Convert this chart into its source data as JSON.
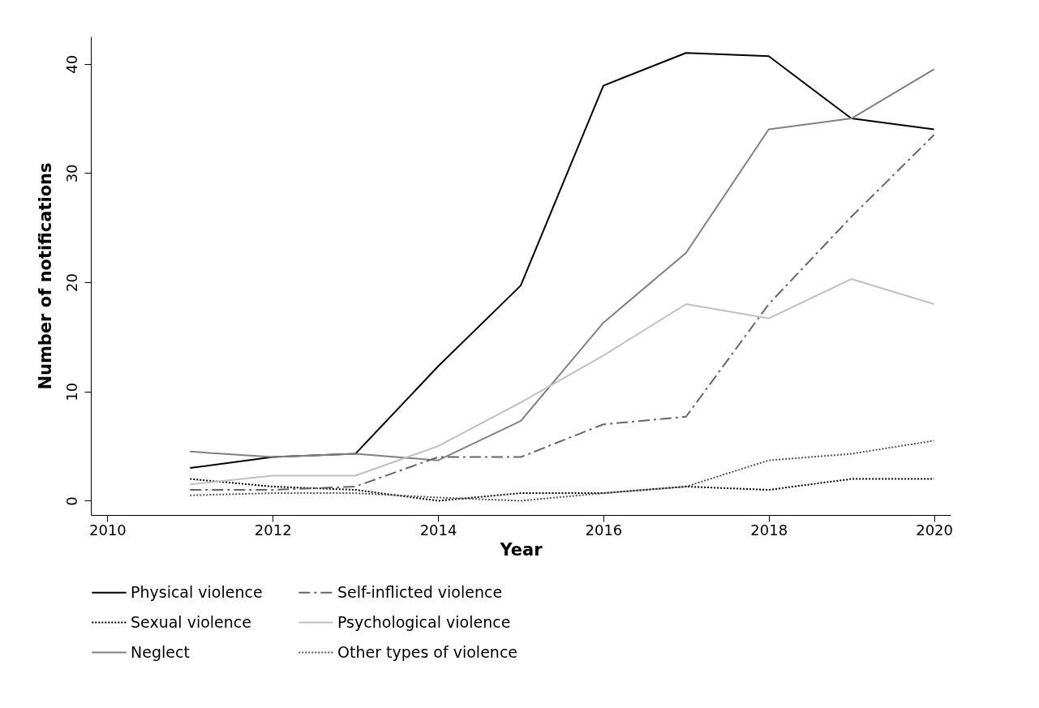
{
  "chart_data": {
    "type": "line",
    "xlabel": "Year",
    "ylabel": "Number of notifications",
    "x": [
      2011,
      2012,
      2013,
      2014,
      2015,
      2016,
      2017,
      2018,
      2019,
      2020
    ],
    "series": [
      {
        "name": "Physical violence",
        "color": "#000000",
        "line_style": "solid",
        "values": [
          3,
          4,
          4.3,
          12.3,
          19.7,
          38,
          41,
          40.7,
          35,
          34
        ]
      },
      {
        "name": "Sexual violence",
        "color": "#000000",
        "line_style": "dotted",
        "values": [
          2,
          1.3,
          1,
          0,
          0.7,
          0.7,
          1.3,
          1,
          2,
          2
        ]
      },
      {
        "name": "Neglect",
        "color": "#808080",
        "line_style": "solid",
        "values": [
          4.5,
          4,
          4.3,
          3.7,
          7.3,
          16.3,
          22.7,
          34,
          35,
          39.5
        ]
      },
      {
        "name": "Self-inflicted violence",
        "color": "#666666",
        "line_style": "dashed",
        "values": [
          1,
          1,
          1.3,
          4,
          4,
          7,
          7.7,
          18,
          26,
          33.5
        ]
      },
      {
        "name": "Psychological violence",
        "color": "#c0c0c0",
        "line_style": "solid",
        "values": [
          1.5,
          2.3,
          2.3,
          5,
          9,
          13.3,
          18,
          16.7,
          20.3,
          18
        ]
      },
      {
        "name": "Other types of violence",
        "color": "#555555",
        "line_style": "dotted",
        "values": [
          0.5,
          0.7,
          0.7,
          0.3,
          0,
          0.7,
          1.3,
          3.7,
          4.3,
          5.5
        ]
      }
    ],
    "xlim": [
      2009.8,
      2020.2
    ],
    "xticks": [
      2010,
      2012,
      2014,
      2016,
      2018,
      2020
    ],
    "ylim": [
      -1.3,
      42.5
    ],
    "yticks": [
      0,
      10,
      20,
      30,
      40
    ],
    "grid": false,
    "legend": "bottom",
    "marker": "none"
  }
}
